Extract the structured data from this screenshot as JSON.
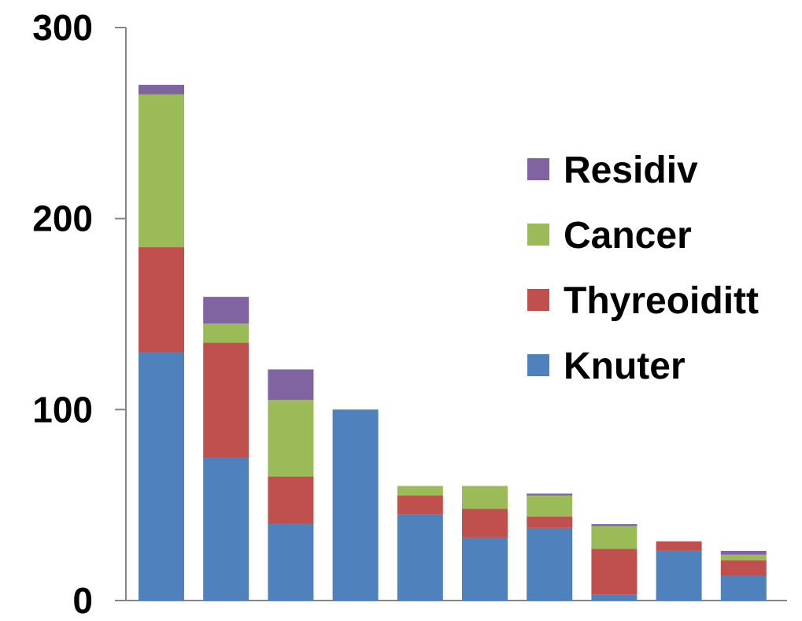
{
  "chart_data": {
    "type": "bar",
    "stacked": true,
    "title": "",
    "xlabel": "",
    "ylabel": "",
    "ylim": [
      0,
      300
    ],
    "yticks": [
      0,
      100,
      200,
      300
    ],
    "grid": false,
    "legend_position": "right",
    "categories": [
      "",
      "",
      "",
      "",
      "",
      "",
      "",
      "",
      "",
      ""
    ],
    "series": [
      {
        "name": "Knuter",
        "color": "#4F81BD",
        "values": [
          130,
          75,
          40,
          100,
          45,
          33,
          38,
          3,
          26,
          13
        ]
      },
      {
        "name": "Thyreoiditt",
        "color": "#C0504D",
        "values": [
          55,
          60,
          25,
          0,
          10,
          15,
          6,
          24,
          5,
          8
        ]
      },
      {
        "name": "Cancer",
        "color": "#9BBB59",
        "values": [
          80,
          10,
          40,
          0,
          5,
          12,
          11,
          12,
          0,
          3
        ]
      },
      {
        "name": "Residiv",
        "color": "#8064A2",
        "values": [
          5,
          14,
          16,
          0,
          0,
          0,
          1,
          1,
          0,
          2
        ]
      }
    ],
    "legend_order": [
      "Residiv",
      "Cancer",
      "Thyreoiditt",
      "Knuter"
    ]
  }
}
